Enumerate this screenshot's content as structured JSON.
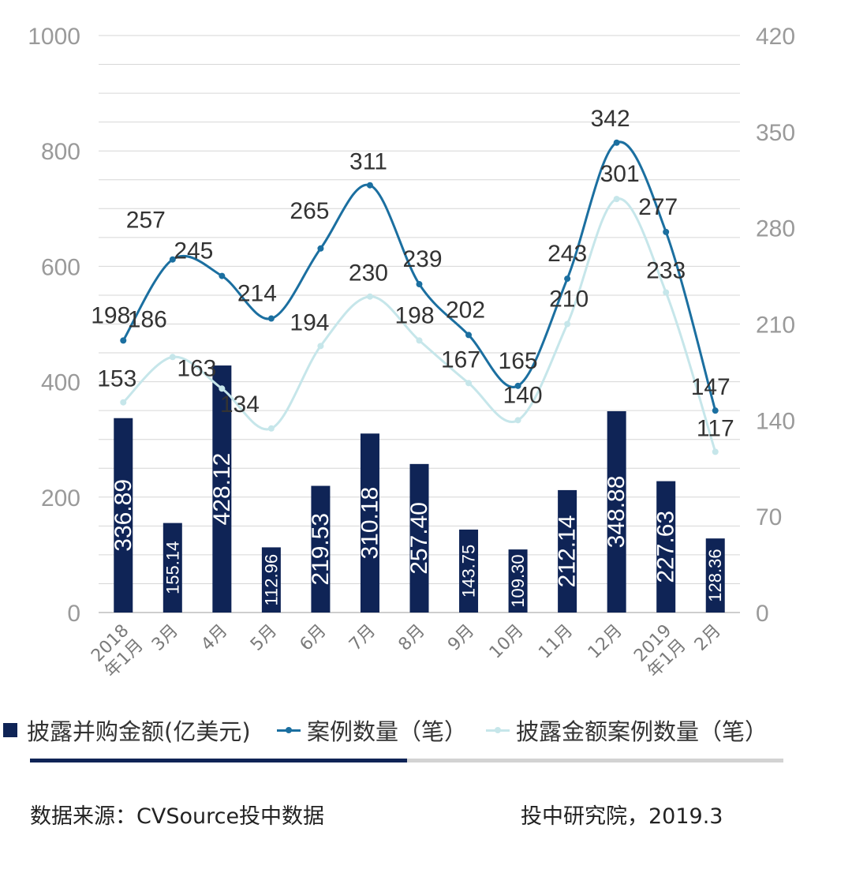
{
  "chart_data": {
    "type": "bar+line",
    "categories": [
      "2018年1月",
      "3月",
      "4月",
      "5月",
      "6月",
      "7月",
      "8月",
      "9月",
      "10月",
      "11月",
      "12月",
      "2019年1月",
      "2月"
    ],
    "category_labels": [
      [
        "2018",
        "年1月"
      ],
      [
        "3月"
      ],
      [
        "4月"
      ],
      [
        "5月"
      ],
      [
        "6月"
      ],
      [
        "7月"
      ],
      [
        "8月"
      ],
      [
        "9月"
      ],
      [
        "10月"
      ],
      [
        "11月"
      ],
      [
        "12月"
      ],
      [
        "2019",
        "年1月"
      ],
      [
        "2月"
      ]
    ],
    "series": [
      {
        "name": "披露并购金额(亿美元)",
        "type": "bar",
        "axis": "left",
        "color": "#0f2456",
        "values": [
          336.89,
          155.14,
          428.12,
          112.96,
          219.53,
          310.18,
          257.4,
          143.75,
          109.3,
          212.14,
          348.88,
          227.63,
          128.36
        ],
        "labels": [
          "336.89",
          "155.14",
          "428.12",
          "112.96",
          "219.53",
          "310.18",
          "257.40",
          "143.75",
          "109.30",
          "212.14",
          "348.88",
          "227.63",
          "128.36"
        ]
      },
      {
        "name": "案例数量（笔）",
        "type": "line",
        "axis": "right",
        "color": "#1b6fa0",
        "values": [
          198,
          257,
          245,
          214,
          265,
          311,
          239,
          202,
          165,
          243,
          342,
          277,
          147
        ]
      },
      {
        "name": "披露金额案例数量（笔）",
        "type": "line",
        "axis": "right",
        "color": "#c6e6ea",
        "values": [
          153,
          186,
          163,
          134,
          194,
          230,
          198,
          167,
          140,
          210,
          301,
          233,
          117
        ]
      }
    ],
    "y_left": {
      "min": 0,
      "max": 1000,
      "ticks": [
        "0",
        "200",
        "400",
        "600",
        "800",
        "1000"
      ]
    },
    "y_right": {
      "min": 0,
      "max": 420,
      "ticks": [
        "0",
        "70",
        "140",
        "210",
        "280",
        "350",
        "420"
      ]
    },
    "grid": true,
    "legend_position": "bottom"
  },
  "footer": {
    "source": "数据来源：CVSource投中数据",
    "credit": "投中研究院，2019.3"
  }
}
